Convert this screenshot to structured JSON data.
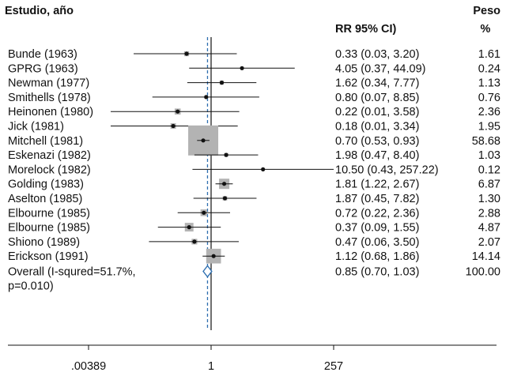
{
  "chart_data": {
    "type": "forest",
    "header": {
      "study": "Estudio, año",
      "ci": "RR 95% CI)",
      "weight_line1": "Peso",
      "weight_line2": "%"
    },
    "studies": [
      {
        "label": "Bunde (1963)",
        "rr": 0.33,
        "lo": 0.03,
        "hi": 3.2,
        "ci_text": "0.33 (0.03, 3.20)",
        "weight": 1.61,
        "weight_text": "1.61"
      },
      {
        "label": "GPRG (1963)",
        "rr": 4.05,
        "lo": 0.37,
        "hi": 44.09,
        "ci_text": "4.05 (0.37, 44.09)",
        "weight": 0.24,
        "weight_text": "0.24"
      },
      {
        "label": "Newman (1977)",
        "rr": 1.62,
        "lo": 0.34,
        "hi": 7.77,
        "ci_text": "1.62 (0.34, 7.77)",
        "weight": 1.13,
        "weight_text": "1.13"
      },
      {
        "label": "Smithells (1978)",
        "rr": 0.8,
        "lo": 0.07,
        "hi": 8.85,
        "ci_text": "0.80 (0.07, 8.85)",
        "weight": 0.76,
        "weight_text": "0.76"
      },
      {
        "label": "Heinonen (1980)",
        "rr": 0.22,
        "lo": 0.01,
        "hi": 3.58,
        "ci_text": "0.22 (0.01, 3.58)",
        "weight": 2.36,
        "weight_text": "2.36"
      },
      {
        "label": "Jick (1981)",
        "rr": 0.18,
        "lo": 0.01,
        "hi": 3.34,
        "ci_text": "0.18 (0.01, 3.34)",
        "weight": 1.95,
        "weight_text": "1.95"
      },
      {
        "label": "Mitchell (1981)",
        "rr": 0.7,
        "lo": 0.53,
        "hi": 0.93,
        "ci_text": "0.70 (0.53, 0.93)",
        "weight": 58.68,
        "weight_text": "58.68"
      },
      {
        "label": "Eskenazi (1982)",
        "rr": 1.98,
        "lo": 0.47,
        "hi": 8.4,
        "ci_text": "1.98 (0.47, 8.40)",
        "weight": 1.03,
        "weight_text": "1.03"
      },
      {
        "label": "Morelock (1982)",
        "rr": 10.5,
        "lo": 0.43,
        "hi": 257.22,
        "ci_text": "10.50 (0.43, 257.22)",
        "weight": 0.12,
        "weight_text": "0.12"
      },
      {
        "label": "Golding (1983)",
        "rr": 1.81,
        "lo": 1.22,
        "hi": 2.67,
        "ci_text": "1.81 (1.22, 2.67)",
        "weight": 6.87,
        "weight_text": "6.87"
      },
      {
        "label": "Aselton (1985)",
        "rr": 1.87,
        "lo": 0.45,
        "hi": 7.82,
        "ci_text": "1.87 (0.45, 7.82)",
        "weight": 1.3,
        "weight_text": "1.30"
      },
      {
        "label": "Elbourne (1985)",
        "rr": 0.72,
        "lo": 0.22,
        "hi": 2.36,
        "ci_text": "0.72 (0.22, 2.36)",
        "weight": 2.88,
        "weight_text": "2.88"
      },
      {
        "label": "Elbourne (1985)",
        "rr": 0.37,
        "lo": 0.09,
        "hi": 1.55,
        "ci_text": "0.37 (0.09, 1.55)",
        "weight": 4.87,
        "weight_text": "4.87"
      },
      {
        "label": "Shiono (1989)",
        "rr": 0.47,
        "lo": 0.06,
        "hi": 3.5,
        "ci_text": "0.47 (0.06, 3.50)",
        "weight": 2.07,
        "weight_text": "2.07"
      },
      {
        "label": "Erickson (1991)",
        "rr": 1.12,
        "lo": 0.68,
        "hi": 1.86,
        "ci_text": "1.12 (0.68, 1.86)",
        "weight": 14.14,
        "weight_text": "14.14"
      }
    ],
    "overall": {
      "label_line1": "Overall (I-squred=51.7%,",
      "label_line2": "p=0.010)",
      "rr": 0.85,
      "lo": 0.7,
      "hi": 1.03,
      "ci_text": "0.85 (0.70, 1.03)",
      "weight_text": "100.00"
    },
    "x_axis": {
      "scale": "log",
      "range": [
        0.00389,
        257
      ],
      "ticks": [
        0.00389,
        1,
        257
      ],
      "tick_labels": [
        ".00389",
        "1",
        "257"
      ]
    },
    "null_line": 1,
    "colors": {
      "ink": "#111111",
      "box": "#b3b3b3",
      "overall_line": "#2e6fb0",
      "diamond": "#2e6fb0"
    }
  }
}
